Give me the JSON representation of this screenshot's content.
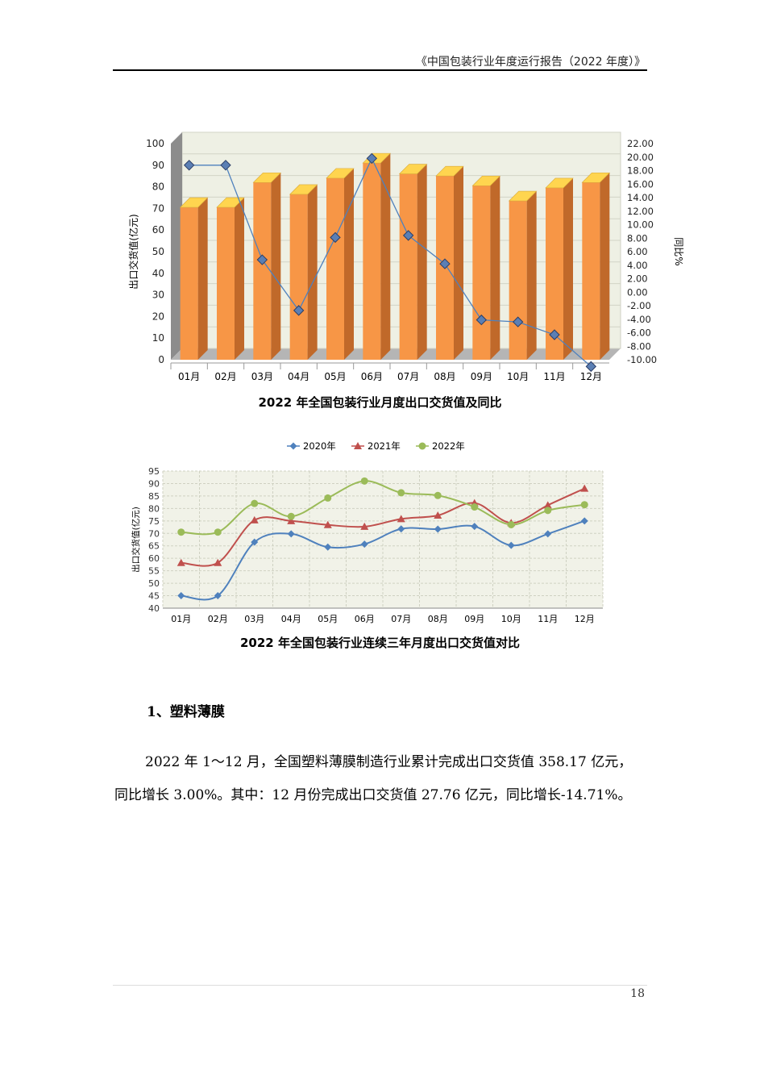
{
  "header": {
    "text": "《中国包装行业年度运行报告（2022 年度）》"
  },
  "chart_data": [
    {
      "type": "bar",
      "title": "2022 年全国包装行业月度出口交货值及同比",
      "categories": [
        "01月",
        "02月",
        "03月",
        "04月",
        "05月",
        "06月",
        "07月",
        "08月",
        "09月",
        "10月",
        "11月",
        "12月"
      ],
      "ylabel": "出口交货值(亿元)",
      "ylim": [
        0,
        100
      ],
      "yticks": [
        "0",
        "10",
        "20",
        "30",
        "40",
        "50",
        "60",
        "70",
        "80",
        "90",
        "100"
      ],
      "y2label": "同比%",
      "y2lim": [
        -10,
        22
      ],
      "y2ticks": [
        "22.00",
        "20.00",
        "18.00",
        "16.00",
        "14.00",
        "12.00",
        "10.00",
        "8.00",
        "6.00",
        "4.00",
        "2.00",
        "0.00",
        "-2.00",
        "-4.00",
        "-6.00",
        "-8.00",
        "-10.00"
      ],
      "series": [
        {
          "type": "bar",
          "axis": "left",
          "values": [
            70.5,
            70.5,
            82,
            76.5,
            84,
            91,
            86,
            85,
            80.5,
            73.5,
            79.5,
            82
          ]
        },
        {
          "type": "line",
          "axis": "right",
          "values": [
            18.8,
            18.8,
            4.8,
            -2.7,
            8.1,
            19.8,
            8.4,
            4.2,
            -4.1,
            -4.4,
            -6.3,
            -11.0
          ]
        }
      ],
      "colors": {
        "bar": "#f79646",
        "bar_side": "#c0692a",
        "bar_top": "#ffd54f",
        "line": "#4f81bd"
      }
    },
    {
      "type": "line",
      "title": "2022 年全国包装行业连续三年月度出口交货值对比",
      "categories": [
        "01月",
        "02月",
        "03月",
        "04月",
        "05月",
        "06月",
        "07月",
        "08月",
        "09月",
        "10月",
        "11月",
        "12月"
      ],
      "ylabel": "出口交货值(亿元)",
      "ylim": [
        40,
        95
      ],
      "yticks": [
        "40",
        "45",
        "50",
        "55",
        "60",
        "65",
        "70",
        "75",
        "80",
        "85",
        "90",
        "95"
      ],
      "legend_position": "top",
      "series": [
        {
          "name": "2020年",
          "color": "#4f81bd",
          "marker": "diamond",
          "values": [
            45.0,
            45.0,
            66.5,
            69.8,
            64.5,
            65.7,
            71.8,
            71.7,
            72.8,
            65.2,
            69.8,
            75.0
          ]
        },
        {
          "name": "2021年",
          "color": "#c0504d",
          "marker": "triangle",
          "values": [
            58.2,
            58.2,
            75.3,
            75.0,
            73.4,
            72.7,
            75.8,
            77.2,
            82.2,
            74.2,
            81.3,
            88.0
          ]
        },
        {
          "name": "2022年",
          "color": "#9bbb59",
          "marker": "circle",
          "values": [
            70.5,
            70.5,
            82.0,
            76.8,
            84.2,
            91.0,
            86.3,
            85.2,
            80.6,
            73.5,
            79.2,
            81.5
          ]
        }
      ]
    }
  ],
  "section": {
    "heading": "1、塑料薄膜"
  },
  "paragraph": {
    "line1": "2022 年 1～12 月，全国塑料薄膜制造行业累计完成出口交货值 358.17 亿元，",
    "line2": "同比增长 3.00%。其中：12 月份完成出口交货值 27.76 亿元，同比增长-14.71%。"
  },
  "footer": {
    "page_number": "18"
  }
}
